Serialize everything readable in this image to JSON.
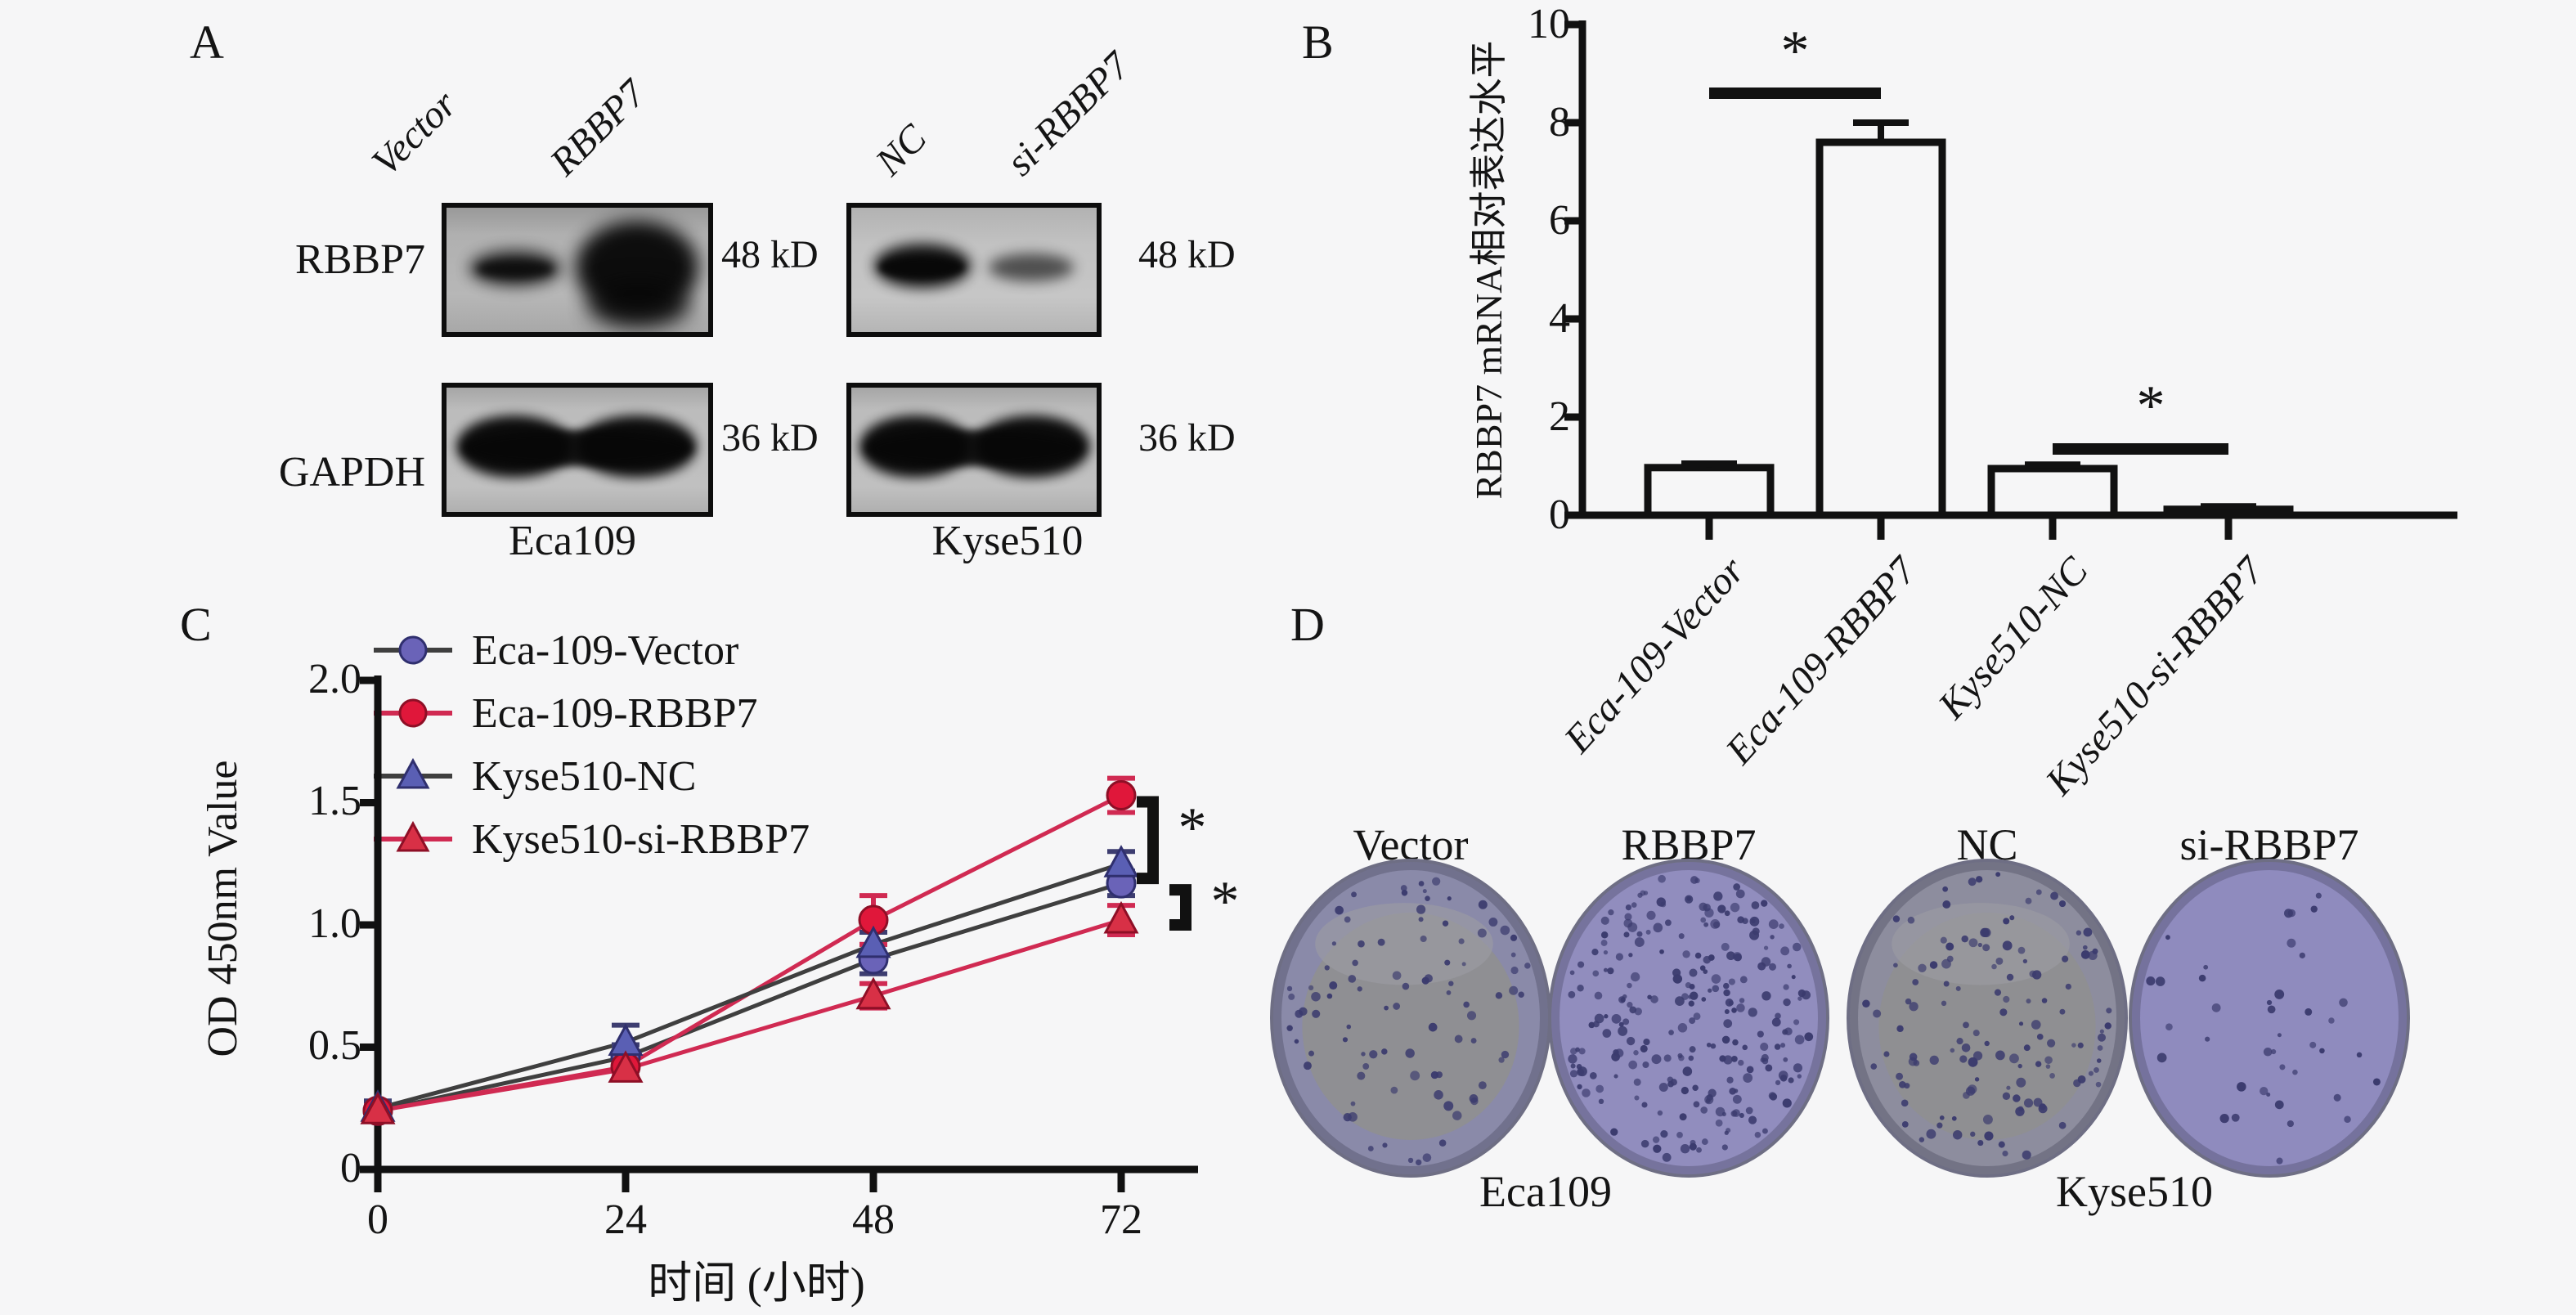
{
  "figure_bg": "#f6f6f7",
  "panelA": {
    "label": "A",
    "lane_labels": [
      "Vector",
      "RBBP7",
      "NC",
      "si-RBBP7"
    ],
    "row_labels": [
      "RBBP7",
      "GAPDH"
    ],
    "size_label_rbbp7": "48 kD",
    "size_label_gapdh": "36 kD",
    "cell_lines": [
      "Eca109",
      "Kyse510"
    ]
  },
  "panelB": {
    "label": "B"
  },
  "panelC": {
    "label": "C"
  },
  "panelD": {
    "label": "D",
    "colony_color": "#3b3b6e",
    "dishes": [
      {
        "label": "Vector",
        "colony_count": 90,
        "base_color": "#8a8aa9",
        "gray_center": true
      },
      {
        "label": "RBBP7",
        "colony_count": 250,
        "base_color": "#918dbe",
        "gray_center": false
      },
      {
        "label": "NC",
        "colony_count": 130,
        "base_color": "#8d8d9e",
        "gray_center": true
      },
      {
        "label": "si-RBBP7",
        "colony_count": 40,
        "base_color": "#8f8bbe",
        "gray_center": false
      }
    ],
    "cell_lines": [
      "Eca109",
      "Kyse510"
    ]
  },
  "chart_data": [
    {
      "type": "bar",
      "title": "",
      "xlabel": "",
      "ylabel": "RBBP7 mRNA相对表达水平",
      "categories": [
        "Eca-109-Vector",
        "Eca-109-RBBP7",
        "Kyse510-NC",
        "Kyse510-si-RBBP7"
      ],
      "values": [
        0.97,
        7.6,
        0.95,
        0.12
      ],
      "errors": [
        0.08,
        0.4,
        0.08,
        0.06
      ],
      "ylim": [
        0,
        10
      ],
      "yticks": [
        10,
        8,
        6,
        4,
        2,
        0
      ],
      "grid": false,
      "bar_fill": "#f6f6f7",
      "bar_edge": "#111111",
      "significance": [
        {
          "pair": [
            0,
            1
          ],
          "label": "*",
          "y": 8.6
        },
        {
          "pair": [
            2,
            3
          ],
          "label": "*",
          "y": 1.35
        }
      ]
    },
    {
      "type": "line",
      "title": "",
      "xlabel": "时间 (小时)",
      "ylabel": "OD 450nm Value",
      "x": [
        0,
        24,
        48,
        72
      ],
      "xticks": [
        "0",
        "24",
        "48",
        "72"
      ],
      "ylim": [
        0,
        2.0
      ],
      "yticks": [
        2.0,
        1.5,
        1.0,
        0.5,
        0
      ],
      "ytick_labels": [
        "2.0",
        "1.5",
        "1.0",
        "0.5",
        "0"
      ],
      "grid": false,
      "legend_position": "upper-left",
      "series": [
        {
          "name": "Eca-109-Vector",
          "marker": "circle",
          "fill": "#6a63b8",
          "edge": "#2f2f6e",
          "line": "#3f3f3f",
          "err": "#3d3d70",
          "values": [
            0.24,
            0.46,
            0.86,
            1.17
          ],
          "errors": [
            0.02,
            0.05,
            0.06,
            0.05
          ]
        },
        {
          "name": "Eca-109-RBBP7",
          "marker": "circle",
          "fill": "#e0173a",
          "edge": "#8e0f26",
          "line": "#d02a52",
          "err": "#d02a52",
          "values": [
            0.24,
            0.42,
            1.02,
            1.53
          ],
          "errors": [
            0.02,
            0.04,
            0.1,
            0.07
          ]
        },
        {
          "name": "Kyse510-NC",
          "marker": "triangle",
          "fill": "#5a5fb4",
          "edge": "#2f2f6e",
          "line": "#3f3f3f",
          "err": "#3d3d70",
          "values": [
            0.25,
            0.52,
            0.92,
            1.25
          ],
          "errors": [
            0.03,
            0.07,
            0.05,
            0.05
          ]
        },
        {
          "name": "Kyse510-si-RBBP7",
          "marker": "triangle",
          "fill": "#d83046",
          "edge": "#8e0f26",
          "line": "#d02a52",
          "err": "#d02a52",
          "values": [
            0.24,
            0.41,
            0.71,
            1.02
          ],
          "errors": [
            0.02,
            0.04,
            0.05,
            0.06
          ]
        }
      ],
      "significance": [
        {
          "label": "*"
        },
        {
          "label": "*"
        }
      ]
    }
  ]
}
